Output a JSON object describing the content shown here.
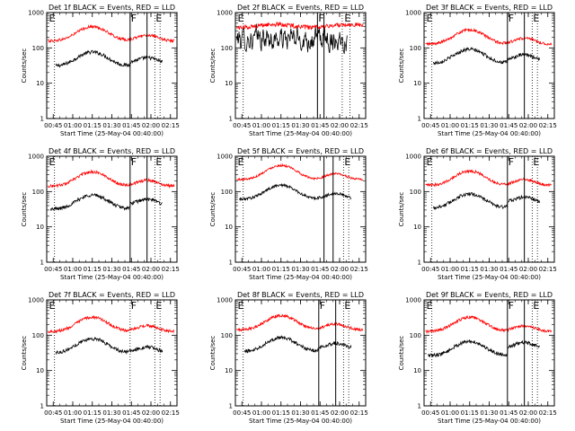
{
  "chart_data": [
    {
      "type": "line",
      "title": "Det 1f BLACK = Events, RED = LLD",
      "xlabel": "Start Time (25-May-04 00:40:00)",
      "ylabel": "Counts/sec",
      "y_scale": "log",
      "ylim": [
        1,
        1000
      ],
      "y_ticks": [
        "1",
        "10",
        "100",
        "1000"
      ],
      "x_ticks": [
        "00:45",
        "01:00",
        "01:15",
        "01:30",
        "01:45",
        "02:00",
        "02:15"
      ],
      "xlim": [
        "00:40",
        "02:20"
      ],
      "solid_lines": [
        "01:44",
        "01:57"
      ],
      "dotted_lines": [
        "00:46",
        "02:03",
        "02:07"
      ],
      "markers": [
        {
          "label": "E",
          "at": "00:41"
        },
        {
          "label": "F",
          "at": "01:44"
        },
        {
          "label": "E",
          "at": "02:03"
        }
      ],
      "series": [
        {
          "color": "#000000",
          "start": "00:47",
          "end": "02:09",
          "shape": "profile",
          "base": 40,
          "noise": 0.05,
          "jump": {
            "at": "01:44",
            "factor": 1.2
          }
        },
        {
          "color": "#ff0000",
          "start": "00:41",
          "end": "02:18",
          "shape": "profile",
          "base": 210,
          "noise": 0.04,
          "jump": null
        }
      ]
    },
    {
      "type": "line",
      "title": "Det 2f BLACK = Events, RED = LLD",
      "xlabel": "Start Time (25-May-04 00:40:00)",
      "ylabel": "Counts/sec",
      "y_scale": "log",
      "ylim": [
        1,
        1000
      ],
      "y_ticks": [
        "1",
        "10",
        "100",
        "1000"
      ],
      "x_ticks": [
        "00:45",
        "01:00",
        "01:15",
        "01:30",
        "01:45",
        "02:00",
        "02:15"
      ],
      "xlim": [
        "00:40",
        "02:20"
      ],
      "solid_lines": [
        "01:43",
        "01:48"
      ],
      "dotted_lines": [
        "00:46",
        "02:02",
        "02:08"
      ],
      "markers": [
        {
          "label": "E",
          "at": "00:41"
        },
        {
          "label": "F",
          "at": "01:43"
        },
        {
          "label": "E",
          "at": "02:03"
        }
      ],
      "series": [
        {
          "color": "#000000",
          "start": "00:41",
          "end": "02:06",
          "shape": "noisy",
          "base": 180,
          "noise": 0.25,
          "jump": null
        },
        {
          "color": "#ff0000",
          "start": "00:41",
          "end": "02:18",
          "shape": "flat",
          "base": 420,
          "noise": 0.06,
          "jump": null
        }
      ]
    },
    {
      "type": "line",
      "title": "Det 3f BLACK = Events, RED = LLD",
      "xlabel": "Start Time (25-May-04 00:40:00)",
      "ylabel": "Counts/sec",
      "y_scale": "log",
      "ylim": [
        1,
        1000
      ],
      "y_ticks": [
        "1",
        "10",
        "100",
        "1000"
      ],
      "x_ticks": [
        "00:45",
        "01:00",
        "01:15",
        "01:30",
        "01:45",
        "02:00",
        "02:15"
      ],
      "xlim": [
        "00:40",
        "02:20"
      ],
      "solid_lines": [
        "01:44",
        "01:57"
      ],
      "dotted_lines": [
        "00:46",
        "02:03",
        "02:07"
      ],
      "markers": [
        {
          "label": "E",
          "at": "00:41"
        },
        {
          "label": "F",
          "at": "01:44"
        },
        {
          "label": "E",
          "at": "02:03"
        }
      ],
      "series": [
        {
          "color": "#000000",
          "start": "00:47",
          "end": "02:09",
          "shape": "profile",
          "base": 48,
          "noise": 0.05,
          "jump": {
            "at": "01:44",
            "factor": 1.2
          }
        },
        {
          "color": "#ff0000",
          "start": "00:41",
          "end": "02:18",
          "shape": "profile",
          "base": 170,
          "noise": 0.04,
          "jump": null
        }
      ]
    },
    {
      "type": "line",
      "title": "Det 4f BLACK = Events, RED = LLD",
      "xlabel": "Start Time (25-May-04 00:40:00)",
      "ylabel": "Counts/sec",
      "y_scale": "log",
      "ylim": [
        1,
        1000
      ],
      "y_ticks": [
        "1",
        "10",
        "100",
        "1000"
      ],
      "x_ticks": [
        "00:45",
        "01:00",
        "01:15",
        "01:30",
        "01:45",
        "02:00",
        "02:15"
      ],
      "xlim": [
        "00:40",
        "02:20"
      ],
      "solid_lines": [
        "01:44",
        "01:57"
      ],
      "dotted_lines": [
        "00:46",
        "02:03",
        "02:07"
      ],
      "markers": [
        {
          "label": "E",
          "at": "00:41"
        },
        {
          "label": "F",
          "at": "01:44"
        },
        {
          "label": "E",
          "at": "02:03"
        }
      ],
      "series": [
        {
          "color": "#000000",
          "start": "00:43",
          "end": "02:09",
          "shape": "profile",
          "base": 42,
          "noise": 0.05,
          "jump": {
            "at": "01:44",
            "factor": 1.3
          }
        },
        {
          "color": "#ff0000",
          "start": "00:41",
          "end": "02:18",
          "shape": "profile",
          "base": 190,
          "noise": 0.04,
          "jump": null
        }
      ]
    },
    {
      "type": "line",
      "title": "Det 5f BLACK = Events, RED = LLD",
      "xlabel": "Start Time (25-May-04 00:40:00)",
      "ylabel": "Counts/sec",
      "y_scale": "log",
      "ylim": [
        1,
        1000
      ],
      "y_ticks": [
        "1",
        "10",
        "100",
        "1000"
      ],
      "x_ticks": [
        "00:45",
        "01:00",
        "01:15",
        "01:30",
        "01:45",
        "02:00",
        "02:15"
      ],
      "xlim": [
        "00:40",
        "02:20"
      ],
      "solid_lines": [
        "01:48",
        "01:55"
      ],
      "dotted_lines": [
        "00:46",
        "02:03",
        "02:07"
      ],
      "markers": [
        {
          "label": "E",
          "at": "00:41"
        },
        {
          "label": "E",
          "at": "02:03"
        }
      ],
      "series": [
        {
          "color": "#000000",
          "start": "00:43",
          "end": "02:09",
          "shape": "profile",
          "base": 80,
          "noise": 0.04,
          "jump": null
        },
        {
          "color": "#ff0000",
          "start": "00:41",
          "end": "02:18",
          "shape": "profile",
          "base": 290,
          "noise": 0.03,
          "jump": null
        }
      ]
    },
    {
      "type": "line",
      "title": "Det 6f BLACK = Events, RED = LLD",
      "xlabel": "Start Time (25-May-04 00:40:00)",
      "ylabel": "Counts/sec",
      "y_scale": "log",
      "ylim": [
        1,
        1000
      ],
      "y_ticks": [
        "1",
        "10",
        "100",
        "1000"
      ],
      "x_ticks": [
        "00:45",
        "01:00",
        "01:15",
        "01:30",
        "01:45",
        "02:00",
        "02:15"
      ],
      "xlim": [
        "00:40",
        "02:20"
      ],
      "solid_lines": [
        "01:44",
        "01:57"
      ],
      "dotted_lines": [
        "00:46",
        "02:03",
        "02:07"
      ],
      "markers": [
        {
          "label": "E",
          "at": "00:41"
        },
        {
          "label": "F",
          "at": "01:44"
        },
        {
          "label": "E",
          "at": "02:03"
        }
      ],
      "series": [
        {
          "color": "#000000",
          "start": "00:47",
          "end": "02:09",
          "shape": "profile",
          "base": 45,
          "noise": 0.05,
          "jump": {
            "at": "01:44",
            "factor": 1.4
          }
        },
        {
          "color": "#ff0000",
          "start": "00:41",
          "end": "02:18",
          "shape": "profile",
          "base": 200,
          "noise": 0.04,
          "jump": null
        }
      ]
    },
    {
      "type": "line",
      "title": "Det 7f BLACK = Events, RED = LLD",
      "xlabel": "Start Time (25-May-04 00:40:00)",
      "ylabel": "Counts/sec",
      "y_scale": "log",
      "ylim": [
        1,
        1000
      ],
      "y_ticks": [
        "1",
        "10",
        "100",
        "1000"
      ],
      "x_ticks": [
        "00:45",
        "01:00",
        "01:15",
        "01:30",
        "01:45",
        "02:00",
        "02:15"
      ],
      "xlim": [
        "00:40",
        "02:20"
      ],
      "solid_lines": [],
      "dotted_lines": [
        "00:46",
        "01:44",
        "02:03",
        "02:07"
      ],
      "markers": [
        {
          "label": "E",
          "at": "00:41"
        },
        {
          "label": "F",
          "at": "01:44"
        },
        {
          "label": "E",
          "at": "02:03"
        }
      ],
      "series": [
        {
          "color": "#000000",
          "start": "00:47",
          "end": "02:09",
          "shape": "profile",
          "base": 42,
          "noise": 0.05,
          "jump": null
        },
        {
          "color": "#ff0000",
          "start": "00:41",
          "end": "02:18",
          "shape": "profile",
          "base": 170,
          "noise": 0.04,
          "jump": null
        }
      ]
    },
    {
      "type": "line",
      "title": "Det 8f BLACK = Events, RED = LLD",
      "xlabel": "Start Time (25-May-04 00:40:00)",
      "ylabel": "Counts/sec",
      "y_scale": "log",
      "ylim": [
        1,
        1000
      ],
      "y_ticks": [
        "1",
        "10",
        "100",
        "1000"
      ],
      "x_ticks": [
        "00:45",
        "01:00",
        "01:15",
        "01:30",
        "01:45",
        "02:00",
        "02:15"
      ],
      "xlim": [
        "00:40",
        "02:20"
      ],
      "solid_lines": [
        "01:44",
        "01:57"
      ],
      "dotted_lines": [
        "00:46",
        "02:03",
        "02:07"
      ],
      "markers": [
        {
          "label": "E",
          "at": "00:41"
        },
        {
          "label": "F",
          "at": "01:44"
        },
        {
          "label": "E",
          "at": "02:03"
        }
      ],
      "series": [
        {
          "color": "#000000",
          "start": "00:47",
          "end": "02:09",
          "shape": "profile",
          "base": 45,
          "noise": 0.05,
          "jump": {
            "at": "01:44",
            "factor": 1.2
          }
        },
        {
          "color": "#ff0000",
          "start": "00:41",
          "end": "02:18",
          "shape": "profile",
          "base": 190,
          "noise": 0.04,
          "jump": null
        }
      ]
    },
    {
      "type": "line",
      "title": "Det 9f BLACK = Events, RED = LLD",
      "xlabel": "Start Time (25-May-04 00:40:00)",
      "ylabel": "Counts/sec",
      "y_scale": "log",
      "ylim": [
        1,
        1000
      ],
      "y_ticks": [
        "1",
        "10",
        "100",
        "1000"
      ],
      "x_ticks": [
        "00:45",
        "01:00",
        "01:15",
        "01:30",
        "01:45",
        "02:00",
        "02:15"
      ],
      "xlim": [
        "00:40",
        "02:20"
      ],
      "solid_lines": [
        "01:44",
        "01:57"
      ],
      "dotted_lines": [
        "00:46",
        "02:03",
        "02:07"
      ],
      "markers": [
        {
          "label": "E",
          "at": "00:41"
        },
        {
          "label": "F",
          "at": "01:44"
        },
        {
          "label": "E",
          "at": "02:03"
        }
      ],
      "series": [
        {
          "color": "#000000",
          "start": "00:43",
          "end": "02:09",
          "shape": "profile",
          "base": 35,
          "noise": 0.05,
          "jump": {
            "at": "01:44",
            "factor": 1.6
          }
        },
        {
          "color": "#ff0000",
          "start": "00:41",
          "end": "02:18",
          "shape": "profile",
          "base": 170,
          "noise": 0.04,
          "jump": null
        }
      ]
    }
  ]
}
